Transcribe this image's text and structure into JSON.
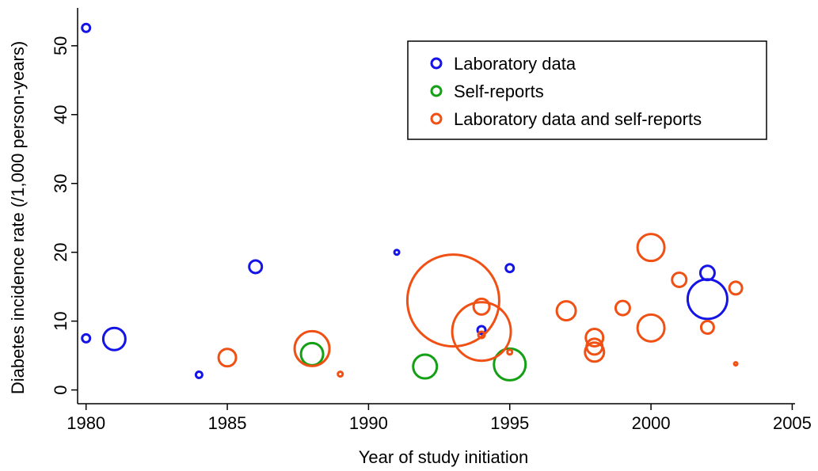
{
  "chart_data": {
    "type": "scatter",
    "xlabel": "Year of study initiation",
    "ylabel": "Diabetes incidence rate (/1,000 person-years)",
    "xlim": [
      1979.7,
      2005.1
    ],
    "ylim": [
      -2,
      55.5
    ],
    "xticks": [
      1980,
      1985,
      1990,
      1995,
      2000,
      2005
    ],
    "yticks": [
      0,
      10,
      20,
      30,
      40,
      50
    ],
    "legend": "upper right",
    "series": [
      {
        "name": "Laboratory data",
        "color": "#1414e6",
        "x": [
          1980,
          1980,
          1981,
          1984,
          1986,
          1991,
          1994,
          1995,
          2002,
          2002
        ],
        "values": [
          52.6,
          7.5,
          7.4,
          2.2,
          17.9,
          20,
          8.7,
          17.7,
          17.0,
          13.2
        ],
        "sizes": [
          5,
          5,
          14,
          4,
          8,
          3,
          5,
          5,
          9,
          25
        ]
      },
      {
        "name": "Self-reports",
        "color": "#14a014",
        "x": [
          1988,
          1992,
          1995
        ],
        "values": [
          5.2,
          3.4,
          3.7
        ],
        "sizes": [
          14,
          15,
          20
        ]
      },
      {
        "name": "Laboratory data and self-reports",
        "color": "#f05014",
        "x": [
          1985,
          1988,
          1989,
          1993,
          1994,
          1994,
          1994,
          1995,
          1997,
          1998,
          1998,
          1998,
          1999,
          2000,
          2000,
          2001,
          2002,
          2003,
          2003
        ],
        "values": [
          4.7,
          6.0,
          2.3,
          13.0,
          12.1,
          8.5,
          8.0,
          5.5,
          11.5,
          7.6,
          6.3,
          5.5,
          11.9,
          20.7,
          9.0,
          16.0,
          9.1,
          14.8,
          3.8
        ],
        "sizes": [
          11,
          22,
          3,
          58,
          10,
          37,
          4,
          3,
          12,
          11,
          10,
          12,
          9,
          17,
          17,
          9,
          8,
          8,
          2
        ]
      }
    ]
  }
}
